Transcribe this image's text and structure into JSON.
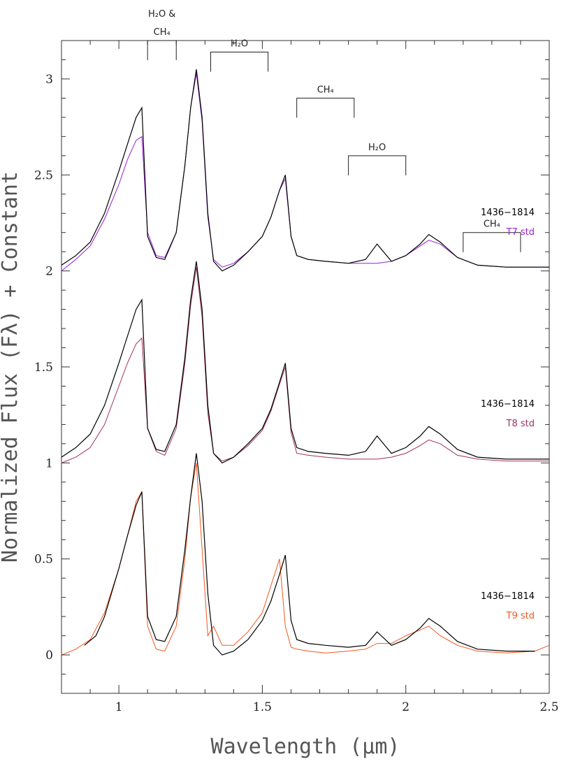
{
  "chart_data": {
    "type": "line",
    "xlabel": "Wavelength (μm)",
    "ylabel": "Normalized Flux (Fλ) + Constant",
    "xlim": [
      0.8,
      2.5
    ],
    "ylim": [
      -0.2,
      3.2
    ],
    "x_ticks": [
      1,
      1.5,
      2,
      2.5
    ],
    "y_ticks": [
      0,
      0.5,
      1,
      1.5,
      2,
      2.5,
      3
    ],
    "grid": false,
    "colors": {
      "object": "#000000",
      "T7": "#9b1fd1",
      "T8": "#a3305e",
      "T9": "#f0581e"
    },
    "band_labels": [
      {
        "lines": [
          "H₂O &",
          "CH₄"
        ],
        "x_start": 1.1,
        "x_end": 1.2
      },
      {
        "lines": [
          "H₂O"
        ],
        "x_start": 1.32,
        "x_end": 1.52
      },
      {
        "lines": [
          "CH₄"
        ],
        "x_start": 1.62,
        "x_end": 1.82
      },
      {
        "lines": [
          "H₂O"
        ],
        "x_start": 1.8,
        "x_end": 2.0
      },
      {
        "lines": [
          "CH₄"
        ],
        "x_start": 2.2,
        "x_end": 2.4
      }
    ],
    "panels": [
      {
        "offset": 2,
        "object_name": "1436−1814",
        "standard_name": "T7 std",
        "standard_color": "#9b1fd1",
        "object": {
          "x": [
            0.8,
            0.85,
            0.9,
            0.95,
            1.0,
            1.03,
            1.06,
            1.08,
            1.1,
            1.13,
            1.16,
            1.2,
            1.23,
            1.25,
            1.27,
            1.29,
            1.31,
            1.33,
            1.36,
            1.4,
            1.45,
            1.5,
            1.53,
            1.56,
            1.58,
            1.6,
            1.62,
            1.66,
            1.72,
            1.8,
            1.86,
            1.9,
            1.95,
            2.0,
            2.05,
            2.08,
            2.12,
            2.18,
            2.25,
            2.35,
            2.45,
            2.5
          ],
          "y": [
            0.03,
            0.08,
            0.15,
            0.3,
            0.52,
            0.66,
            0.8,
            0.85,
            0.18,
            0.07,
            0.06,
            0.2,
            0.55,
            0.85,
            1.05,
            0.8,
            0.3,
            0.05,
            0.0,
            0.03,
            0.1,
            0.18,
            0.28,
            0.42,
            0.5,
            0.18,
            0.08,
            0.06,
            0.05,
            0.04,
            0.06,
            0.14,
            0.05,
            0.08,
            0.14,
            0.19,
            0.15,
            0.07,
            0.03,
            0.02,
            0.02,
            0.02
          ]
        },
        "standard": {
          "x": [
            0.8,
            0.85,
            0.9,
            0.95,
            1.0,
            1.03,
            1.06,
            1.08,
            1.1,
            1.13,
            1.16,
            1.2,
            1.23,
            1.25,
            1.27,
            1.29,
            1.31,
            1.33,
            1.36,
            1.4,
            1.45,
            1.5,
            1.53,
            1.56,
            1.58,
            1.6,
            1.62,
            1.66,
            1.72,
            1.8,
            1.86,
            1.9,
            1.95,
            2.0,
            2.05,
            2.08,
            2.12,
            2.18,
            2.25,
            2.35,
            2.45,
            2.5
          ],
          "y": [
            0.0,
            0.06,
            0.13,
            0.27,
            0.45,
            0.58,
            0.68,
            0.7,
            0.2,
            0.08,
            0.07,
            0.2,
            0.55,
            0.85,
            1.03,
            0.78,
            0.28,
            0.06,
            0.02,
            0.04,
            0.1,
            0.18,
            0.28,
            0.42,
            0.48,
            0.18,
            0.08,
            0.06,
            0.05,
            0.04,
            0.04,
            0.04,
            0.05,
            0.08,
            0.13,
            0.16,
            0.14,
            0.07,
            0.03,
            0.02,
            0.02,
            0.02
          ]
        }
      },
      {
        "offset": 1,
        "object_name": "1436−1814",
        "standard_name": "T8 std",
        "standard_color": "#a3305e",
        "object": {
          "x": [
            0.8,
            0.85,
            0.9,
            0.95,
            1.0,
            1.03,
            1.06,
            1.08,
            1.1,
            1.13,
            1.16,
            1.2,
            1.23,
            1.25,
            1.27,
            1.29,
            1.31,
            1.33,
            1.36,
            1.4,
            1.45,
            1.5,
            1.53,
            1.56,
            1.58,
            1.6,
            1.62,
            1.66,
            1.72,
            1.8,
            1.86,
            1.9,
            1.95,
            2.0,
            2.05,
            2.08,
            2.12,
            2.18,
            2.25,
            2.35,
            2.45,
            2.5
          ],
          "y": [
            0.03,
            0.08,
            0.15,
            0.3,
            0.52,
            0.66,
            0.8,
            0.85,
            0.18,
            0.07,
            0.06,
            0.2,
            0.55,
            0.85,
            1.05,
            0.8,
            0.3,
            0.05,
            0.0,
            0.03,
            0.1,
            0.18,
            0.28,
            0.42,
            0.52,
            0.18,
            0.08,
            0.06,
            0.05,
            0.04,
            0.06,
            0.14,
            0.05,
            0.08,
            0.14,
            0.19,
            0.15,
            0.07,
            0.03,
            0.02,
            0.02,
            0.02
          ]
        },
        "standard": {
          "x": [
            0.8,
            0.85,
            0.9,
            0.95,
            1.0,
            1.03,
            1.06,
            1.08,
            1.1,
            1.13,
            1.16,
            1.2,
            1.23,
            1.25,
            1.27,
            1.29,
            1.31,
            1.33,
            1.36,
            1.4,
            1.45,
            1.5,
            1.53,
            1.56,
            1.58,
            1.6,
            1.62,
            1.66,
            1.72,
            1.8,
            1.86,
            1.9,
            1.95,
            2.0,
            2.05,
            2.08,
            2.12,
            2.18,
            2.25,
            2.35,
            2.45,
            2.5
          ],
          "y": [
            0.0,
            0.03,
            0.08,
            0.2,
            0.4,
            0.52,
            0.62,
            0.65,
            0.18,
            0.06,
            0.04,
            0.18,
            0.52,
            0.82,
            1.02,
            0.76,
            0.26,
            0.05,
            0.01,
            0.03,
            0.09,
            0.17,
            0.27,
            0.41,
            0.5,
            0.16,
            0.05,
            0.04,
            0.03,
            0.02,
            0.02,
            0.02,
            0.03,
            0.05,
            0.09,
            0.12,
            0.1,
            0.04,
            0.02,
            0.01,
            0.01,
            0.01
          ]
        }
      },
      {
        "offset": 0,
        "object_name": "1436−1814",
        "standard_name": "T9 std",
        "standard_color": "#f0581e",
        "object": {
          "x": [
            0.88,
            0.92,
            0.95,
            1.0,
            1.03,
            1.06,
            1.08,
            1.1,
            1.13,
            1.16,
            1.2,
            1.23,
            1.25,
            1.27,
            1.29,
            1.31,
            1.33,
            1.36,
            1.4,
            1.45,
            1.5,
            1.53,
            1.56,
            1.58,
            1.6,
            1.62,
            1.66,
            1.72,
            1.8,
            1.86,
            1.9,
            1.95,
            2.0,
            2.05,
            2.08,
            2.12,
            2.18,
            2.25,
            2.35,
            2.45
          ],
          "y": [
            0.05,
            0.1,
            0.2,
            0.45,
            0.62,
            0.78,
            0.85,
            0.2,
            0.08,
            0.07,
            0.2,
            0.55,
            0.82,
            1.05,
            0.8,
            0.32,
            0.05,
            0.0,
            0.02,
            0.08,
            0.18,
            0.28,
            0.42,
            0.52,
            0.18,
            0.08,
            0.06,
            0.05,
            0.04,
            0.05,
            0.12,
            0.05,
            0.08,
            0.14,
            0.19,
            0.15,
            0.07,
            0.03,
            0.02,
            0.02
          ]
        },
        "standard": {
          "x": [
            0.8,
            0.85,
            0.9,
            0.95,
            1.0,
            1.03,
            1.06,
            1.08,
            1.1,
            1.13,
            1.16,
            1.2,
            1.23,
            1.25,
            1.27,
            1.29,
            1.31,
            1.33,
            1.36,
            1.4,
            1.45,
            1.5,
            1.53,
            1.56,
            1.58,
            1.6,
            1.62,
            1.66,
            1.72,
            1.8,
            1.86,
            1.9,
            1.95,
            2.0,
            2.05,
            2.08,
            2.12,
            2.18,
            2.25,
            2.35,
            2.45,
            2.5
          ],
          "y": [
            0.0,
            0.03,
            0.08,
            0.22,
            0.45,
            0.62,
            0.8,
            0.85,
            0.15,
            0.03,
            0.02,
            0.15,
            0.5,
            0.82,
            1.0,
            0.55,
            0.1,
            0.15,
            0.05,
            0.05,
            0.12,
            0.22,
            0.36,
            0.5,
            0.15,
            0.04,
            0.03,
            0.02,
            0.01,
            0.02,
            0.03,
            0.06,
            0.06,
            0.1,
            0.13,
            0.15,
            0.1,
            0.05,
            0.02,
            0.01,
            0.02,
            0.05
          ]
        }
      }
    ]
  }
}
